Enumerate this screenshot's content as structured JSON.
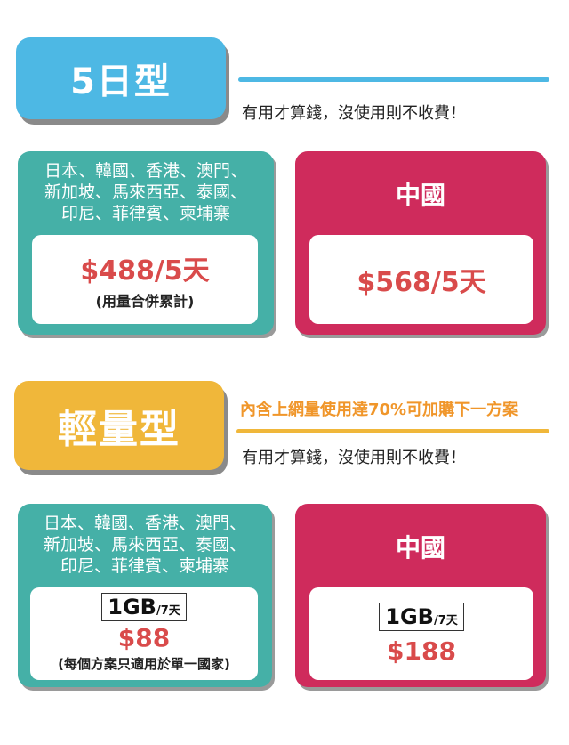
{
  "section_5day": {
    "badge": "5日型",
    "note": "有用才算錢，沒使用則不收費！"
  },
  "card_5day_asia": {
    "region_line1": "日本、韓國、香港、澳門、",
    "region_line2": "新加坡、馬來西亞、泰國、",
    "region_line3": "印尼、菲律賓、柬埔寨",
    "price": "$488/5天",
    "sub": "(用量合併累計)"
  },
  "card_5day_china": {
    "region": "中國",
    "price": "$568/5天"
  },
  "section_light": {
    "badge": "輕量型",
    "highlight": "內含上網量使用達70%可加購下一方案",
    "note": "有用才算錢，沒使用則不收費！"
  },
  "card_light_asia": {
    "region_line1": "日本、韓國、香港、澳門、",
    "region_line2": "新加坡、馬來西亞、泰國、",
    "region_line3": "印尼、菲律賓、柬埔寨",
    "data_amount": "1GB",
    "data_period": "/7天",
    "price": "$88",
    "sub": "(每個方案只適用於單一國家)"
  },
  "card_light_china": {
    "region": "中國",
    "data_amount": "1GB",
    "data_period": "/7天",
    "price": "$188"
  },
  "colors": {
    "blue_badge": "#4db8e4",
    "gold_badge": "#f0b73a",
    "teal_card": "#45b0a7",
    "pink_card": "#cf2b5c",
    "price_red": "#d94b4b",
    "highlight_orange": "#f0962a"
  }
}
